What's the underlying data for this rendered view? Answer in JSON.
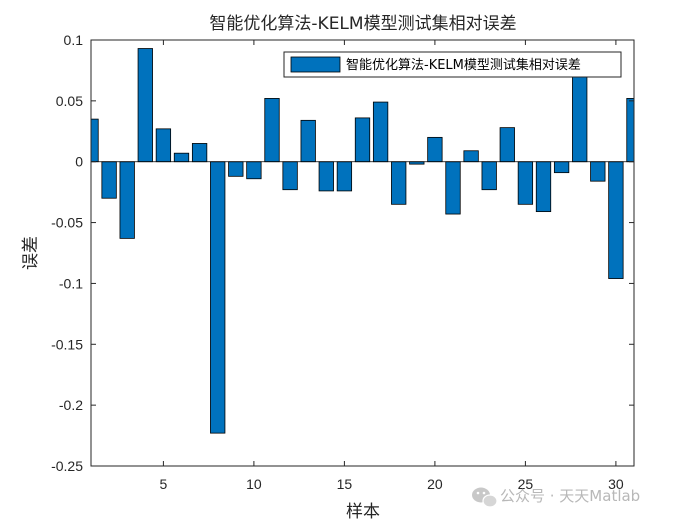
{
  "chart_data": {
    "type": "bar",
    "title": "智能优化算法-KELM模型测试集相对误差",
    "xlabel": "样本",
    "ylabel": "误差",
    "xlim": [
      1,
      31
    ],
    "ylim": [
      -0.25,
      0.1
    ],
    "xticks": [
      5,
      10,
      15,
      20,
      25,
      30
    ],
    "yticks": [
      0.1,
      0.05,
      0,
      -0.05,
      -0.1,
      -0.15,
      -0.2,
      -0.25
    ],
    "ytick_labels": [
      "0.1",
      "0.05",
      "0",
      "-0.05",
      "-0.1",
      "-0.15",
      "-0.2",
      "-0.25"
    ],
    "series": [
      {
        "name": "智能优化算法-KELM模型测试集相对误差",
        "x": [
          1,
          2,
          3,
          4,
          5,
          6,
          7,
          8,
          9,
          10,
          11,
          12,
          13,
          14,
          15,
          16,
          17,
          18,
          19,
          20,
          21,
          22,
          23,
          24,
          25,
          26,
          27,
          28,
          29,
          30,
          31
        ],
        "values": [
          0.035,
          -0.03,
          -0.063,
          0.093,
          0.027,
          0.007,
          0.015,
          -0.223,
          -0.012,
          -0.014,
          0.052,
          -0.023,
          0.034,
          -0.024,
          -0.024,
          0.036,
          0.049,
          -0.035,
          -0.002,
          0.02,
          -0.043,
          0.009,
          -0.023,
          0.028,
          -0.035,
          -0.041,
          -0.009,
          0.075,
          -0.016,
          -0.096,
          0.052
        ]
      }
    ],
    "bar_color": "#0072BD",
    "legend_position": "top-right",
    "grid": false
  },
  "watermark": {
    "text": "公众号 · 天天Matlab",
    "icon": "wechat-icon"
  }
}
